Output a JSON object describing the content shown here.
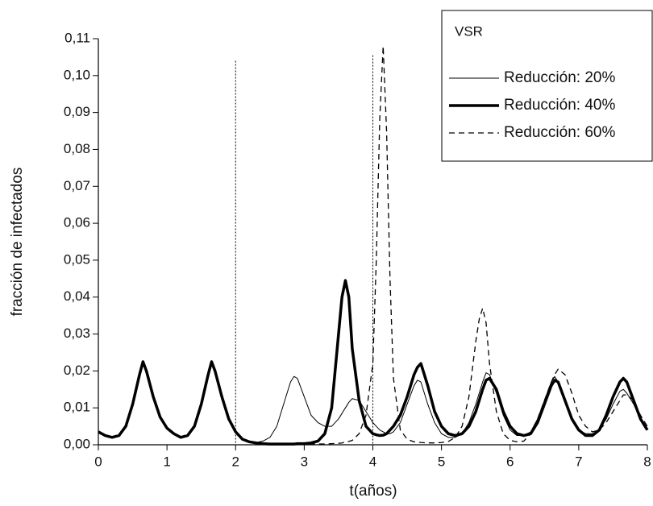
{
  "chart_data": {
    "type": "line",
    "x_label": "t(años)",
    "y_label": "fracción de infectados",
    "legend_title": "VSR",
    "legend": "top-right",
    "xlim": [
      0,
      8
    ],
    "ylim": [
      0,
      0.11
    ],
    "xticks": [
      0,
      1,
      2,
      3,
      4,
      5,
      6,
      7,
      8
    ],
    "yticks": [
      {
        "value": 0,
        "label": "0,00"
      },
      {
        "value": 0.01,
        "label": "0,01"
      },
      {
        "value": 0.02,
        "label": "0,02"
      },
      {
        "value": 0.03,
        "label": "0,03"
      },
      {
        "value": 0.04,
        "label": "0,04"
      },
      {
        "value": 0.05,
        "label": "0,05"
      },
      {
        "value": 0.06,
        "label": "0,06"
      },
      {
        "value": 0.07,
        "label": "0,07"
      },
      {
        "value": 0.08,
        "label": "0,08"
      },
      {
        "value": 0.09,
        "label": "0,09"
      },
      {
        "value": 0.1,
        "label": "0,10"
      },
      {
        "value": 0.11,
        "label": "0,11"
      }
    ],
    "vlines": [
      {
        "x": 2,
        "top": 0.104,
        "color": "#000000"
      },
      {
        "x": 4,
        "top": 0.1055,
        "color": "#000000"
      }
    ],
    "x": [
      0,
      0.1,
      0.2,
      0.3,
      0.4,
      0.5,
      0.6,
      0.65,
      0.7,
      0.8,
      0.9,
      1,
      1.1,
      1.2,
      1.3,
      1.4,
      1.5,
      1.6,
      1.65,
      1.7,
      1.8,
      1.9,
      2,
      2.1,
      2.2,
      2.3,
      2.4,
      2.5,
      2.6,
      2.7,
      2.8,
      2.85,
      2.9,
      3,
      3.1,
      3.2,
      3.3,
      3.4,
      3.5,
      3.55,
      3.6,
      3.65,
      3.7,
      3.8,
      3.9,
      4,
      4.05,
      4.1,
      4.15,
      4.2,
      4.25,
      4.3,
      4.4,
      4.5,
      4.6,
      4.65,
      4.7,
      4.8,
      4.9,
      5,
      5.1,
      5.2,
      5.3,
      5.4,
      5.5,
      5.55,
      5.6,
      5.65,
      5.7,
      5.8,
      5.9,
      6,
      6.1,
      6.2,
      6.3,
      6.4,
      6.5,
      6.6,
      6.65,
      6.7,
      6.8,
      6.9,
      7,
      7.1,
      7.2,
      7.3,
      7.4,
      7.5,
      7.6,
      7.65,
      7.7,
      7.8,
      7.9,
      8
    ],
    "series": [
      {
        "name": "Reducción: 20%",
        "color": "#000000",
        "width": 1,
        "style": "solid",
        "values": [
          0.0035,
          0.0025,
          0.002,
          0.0025,
          0.005,
          0.011,
          0.019,
          0.0225,
          0.02,
          0.013,
          0.0075,
          0.0045,
          0.003,
          0.002,
          0.0025,
          0.005,
          0.011,
          0.019,
          0.0225,
          0.02,
          0.013,
          0.007,
          0.0035,
          0.0015,
          0.0007,
          0.0006,
          0.001,
          0.002,
          0.005,
          0.011,
          0.017,
          0.0185,
          0.018,
          0.013,
          0.008,
          0.006,
          0.005,
          0.005,
          0.007,
          0.0085,
          0.01,
          0.0115,
          0.0125,
          0.012,
          0.009,
          0.006,
          0.005,
          0.004,
          0.0035,
          0.003,
          0.003,
          0.0035,
          0.006,
          0.011,
          0.016,
          0.0175,
          0.017,
          0.011,
          0.006,
          0.003,
          0.002,
          0.002,
          0.003,
          0.006,
          0.011,
          0.014,
          0.017,
          0.0195,
          0.019,
          0.014,
          0.008,
          0.004,
          0.0025,
          0.0025,
          0.0035,
          0.007,
          0.012,
          0.017,
          0.0185,
          0.017,
          0.012,
          0.007,
          0.004,
          0.003,
          0.003,
          0.004,
          0.007,
          0.011,
          0.0145,
          0.015,
          0.014,
          0.011,
          0.007,
          0.004
        ]
      },
      {
        "name": "Reducción: 40%",
        "color": "#000000",
        "width": 3.5,
        "style": "solid",
        "values": [
          0.0035,
          0.0025,
          0.002,
          0.0025,
          0.005,
          0.011,
          0.019,
          0.0225,
          0.02,
          0.013,
          0.0075,
          0.0045,
          0.003,
          0.002,
          0.0025,
          0.005,
          0.011,
          0.019,
          0.0225,
          0.02,
          0.013,
          0.007,
          0.0035,
          0.0015,
          0.0008,
          0.0005,
          0.0003,
          0.0002,
          0.0002,
          0.0002,
          0.0002,
          0.0002,
          0.0003,
          0.0003,
          0.0005,
          0.001,
          0.003,
          0.01,
          0.03,
          0.04,
          0.0445,
          0.04,
          0.026,
          0.012,
          0.005,
          0.003,
          0.0027,
          0.0025,
          0.0026,
          0.003,
          0.004,
          0.005,
          0.008,
          0.013,
          0.019,
          0.021,
          0.022,
          0.016,
          0.009,
          0.005,
          0.003,
          0.0025,
          0.003,
          0.005,
          0.009,
          0.012,
          0.015,
          0.0175,
          0.018,
          0.015,
          0.009,
          0.005,
          0.003,
          0.0025,
          0.003,
          0.006,
          0.011,
          0.016,
          0.0175,
          0.017,
          0.012,
          0.007,
          0.004,
          0.0025,
          0.0025,
          0.004,
          0.008,
          0.013,
          0.017,
          0.018,
          0.017,
          0.012,
          0.007,
          0.004
        ]
      },
      {
        "name": "Reducción: 60%",
        "color": "#000000",
        "width": 1.3,
        "style": "dashed",
        "values": [
          0.0035,
          0.0025,
          0.002,
          0.0025,
          0.005,
          0.011,
          0.019,
          0.0225,
          0.02,
          0.013,
          0.0075,
          0.0045,
          0.003,
          0.002,
          0.0025,
          0.005,
          0.011,
          0.019,
          0.0225,
          0.02,
          0.013,
          0.007,
          0.0035,
          0.0015,
          0.0008,
          0.0005,
          0.0003,
          0.0002,
          0.0002,
          0.0002,
          0.0002,
          0.0002,
          0.0002,
          0.0002,
          0.0002,
          0.0002,
          0.0002,
          0.0003,
          0.0004,
          0.0005,
          0.0007,
          0.0009,
          0.0012,
          0.003,
          0.008,
          0.022,
          0.05,
          0.088,
          0.108,
          0.085,
          0.045,
          0.018,
          0.004,
          0.0015,
          0.0008,
          0.0007,
          0.0006,
          0.0005,
          0.0005,
          0.0006,
          0.0009,
          0.002,
          0.005,
          0.013,
          0.028,
          0.034,
          0.037,
          0.033,
          0.022,
          0.009,
          0.003,
          0.0012,
          0.0008,
          0.001,
          0.003,
          0.007,
          0.012,
          0.017,
          0.019,
          0.0205,
          0.019,
          0.014,
          0.008,
          0.005,
          0.0035,
          0.004,
          0.006,
          0.009,
          0.012,
          0.0135,
          0.0135,
          0.012,
          0.008,
          0.005
        ]
      }
    ]
  }
}
